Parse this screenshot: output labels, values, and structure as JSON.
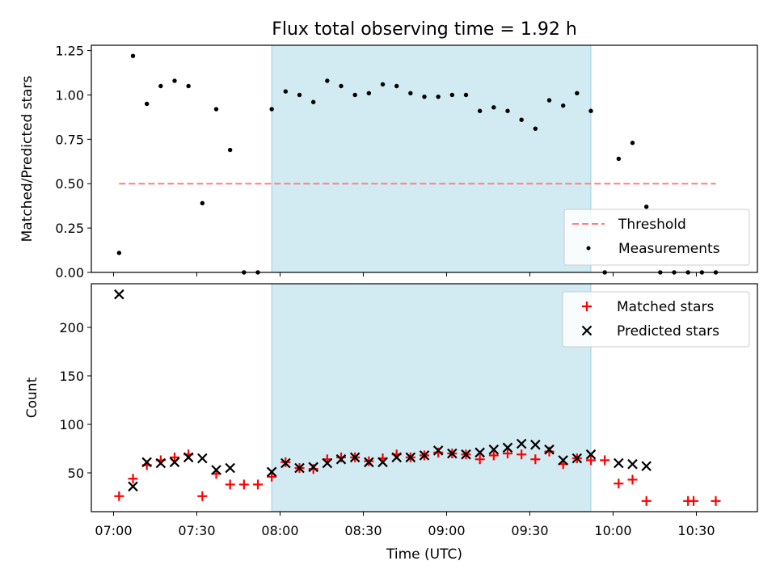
{
  "chart_data": [
    {
      "type": "scatter",
      "title": "Flux total observing time = 1.92 h",
      "xlabel": "",
      "ylabel": "Matched/Predicted stars",
      "xlim": [
        "06:52",
        "10:52"
      ],
      "ylim": [
        0,
        1.28
      ],
      "yticks": [
        0.0,
        0.25,
        0.5,
        0.75,
        1.0,
        1.25
      ],
      "ytick_labels": [
        "0.00",
        "0.25",
        "0.50",
        "0.75",
        "1.00",
        "1.25"
      ],
      "highlight_span": {
        "from": "07:57",
        "to": "09:52",
        "color": "#add8e6"
      },
      "legend_position": "lower right",
      "threshold": {
        "name": "Threshold",
        "y": 0.5,
        "x_from": "07:02",
        "x_to": "10:37",
        "color": "#ff7f7f",
        "style": "dashed"
      },
      "series": [
        {
          "name": "Measurements",
          "color": "#000000",
          "marker": "dot",
          "points": [
            [
              "07:02",
              0.11
            ],
            [
              "07:07",
              1.22
            ],
            [
              "07:12",
              0.95
            ],
            [
              "07:17",
              1.05
            ],
            [
              "07:22",
              1.08
            ],
            [
              "07:27",
              1.05
            ],
            [
              "07:32",
              0.39
            ],
            [
              "07:37",
              0.92
            ],
            [
              "07:42",
              0.69
            ],
            [
              "07:47",
              0.0
            ],
            [
              "07:52",
              0.0
            ],
            [
              "07:57",
              0.92
            ],
            [
              "08:02",
              1.02
            ],
            [
              "08:07",
              1.0
            ],
            [
              "08:12",
              0.96
            ],
            [
              "08:17",
              1.08
            ],
            [
              "08:22",
              1.05
            ],
            [
              "08:27",
              1.0
            ],
            [
              "08:32",
              1.01
            ],
            [
              "08:37",
              1.06
            ],
            [
              "08:42",
              1.05
            ],
            [
              "08:47",
              1.01
            ],
            [
              "08:52",
              0.99
            ],
            [
              "08:57",
              0.99
            ],
            [
              "09:02",
              1.0
            ],
            [
              "09:07",
              1.0
            ],
            [
              "09:12",
              0.91
            ],
            [
              "09:17",
              0.93
            ],
            [
              "09:22",
              0.91
            ],
            [
              "09:27",
              0.86
            ],
            [
              "09:32",
              0.81
            ],
            [
              "09:37",
              0.97
            ],
            [
              "09:42",
              0.94
            ],
            [
              "09:47",
              1.01
            ],
            [
              "09:52",
              0.91
            ],
            [
              "09:57",
              0.0
            ],
            [
              "10:02",
              0.64
            ],
            [
              "10:07",
              0.73
            ],
            [
              "10:12",
              0.37
            ],
            [
              "10:17",
              0.0
            ],
            [
              "10:22",
              0.0
            ],
            [
              "10:27",
              0.0
            ],
            [
              "10:32",
              0.0
            ],
            [
              "10:37",
              0.0
            ]
          ]
        }
      ]
    },
    {
      "type": "scatter",
      "title": "",
      "xlabel": "Time (UTC)",
      "ylabel": "Count",
      "xlim": [
        "06:52",
        "10:52"
      ],
      "ylim": [
        10,
        245
      ],
      "yticks": [
        50,
        100,
        150,
        200
      ],
      "xticks": [
        "07:00",
        "07:30",
        "08:00",
        "08:30",
        "09:00",
        "09:30",
        "10:00",
        "10:30"
      ],
      "highlight_span": {
        "from": "07:57",
        "to": "09:52",
        "color": "#add8e6"
      },
      "legend_position": "upper right",
      "series": [
        {
          "name": "Matched stars",
          "color": "#ff0000",
          "marker": "plus",
          "points": [
            [
              "07:02",
              26
            ],
            [
              "07:07",
              44
            ],
            [
              "07:12",
              58
            ],
            [
              "07:17",
              63
            ],
            [
              "07:22",
              66
            ],
            [
              "07:27",
              69
            ],
            [
              "07:32",
              26
            ],
            [
              "07:37",
              49
            ],
            [
              "07:42",
              38
            ],
            [
              "07:47",
              38
            ],
            [
              "07:52",
              38
            ],
            [
              "07:57",
              46
            ],
            [
              "08:02",
              61
            ],
            [
              "08:07",
              55
            ],
            [
              "08:12",
              54
            ],
            [
              "08:17",
              64
            ],
            [
              "08:22",
              66
            ],
            [
              "08:27",
              66
            ],
            [
              "08:32",
              62
            ],
            [
              "08:37",
              65
            ],
            [
              "08:42",
              69
            ],
            [
              "08:47",
              66
            ],
            [
              "08:52",
              68
            ],
            [
              "08:57",
              71
            ],
            [
              "09:02",
              70
            ],
            [
              "09:07",
              69
            ],
            [
              "09:12",
              64
            ],
            [
              "09:17",
              68
            ],
            [
              "09:22",
              70
            ],
            [
              "09:27",
              69
            ],
            [
              "09:32",
              64
            ],
            [
              "09:37",
              72
            ],
            [
              "09:42",
              59
            ],
            [
              "09:47",
              65
            ],
            [
              "09:52",
              63
            ],
            [
              "09:57",
              63
            ],
            [
              "10:02",
              39
            ],
            [
              "10:07",
              43
            ],
            [
              "10:12",
              21
            ],
            [
              "10:27",
              21
            ],
            [
              "10:29",
              21
            ],
            [
              "10:37",
              21
            ]
          ]
        },
        {
          "name": "Predicted stars",
          "color": "#000000",
          "marker": "x",
          "points": [
            [
              "07:02",
              234
            ],
            [
              "07:07",
              36
            ],
            [
              "07:12",
              61
            ],
            [
              "07:17",
              60
            ],
            [
              "07:22",
              61
            ],
            [
              "07:27",
              66
            ],
            [
              "07:32",
              65
            ],
            [
              "07:37",
              53
            ],
            [
              "07:42",
              55
            ],
            [
              "07:57",
              51
            ],
            [
              "08:02",
              60
            ],
            [
              "08:07",
              55
            ],
            [
              "08:12",
              56
            ],
            [
              "08:17",
              60
            ],
            [
              "08:22",
              64
            ],
            [
              "08:27",
              66
            ],
            [
              "08:32",
              61
            ],
            [
              "08:37",
              61
            ],
            [
              "08:42",
              66
            ],
            [
              "08:47",
              66
            ],
            [
              "08:52",
              68
            ],
            [
              "08:57",
              73
            ],
            [
              "09:02",
              70
            ],
            [
              "09:07",
              69
            ],
            [
              "09:12",
              71
            ],
            [
              "09:17",
              74
            ],
            [
              "09:22",
              76
            ],
            [
              "09:27",
              80
            ],
            [
              "09:32",
              79
            ],
            [
              "09:37",
              74
            ],
            [
              "09:42",
              63
            ],
            [
              "09:47",
              65
            ],
            [
              "09:52",
              69
            ],
            [
              "10:02",
              60
            ],
            [
              "10:07",
              59
            ],
            [
              "10:12",
              57
            ]
          ]
        }
      ]
    }
  ]
}
